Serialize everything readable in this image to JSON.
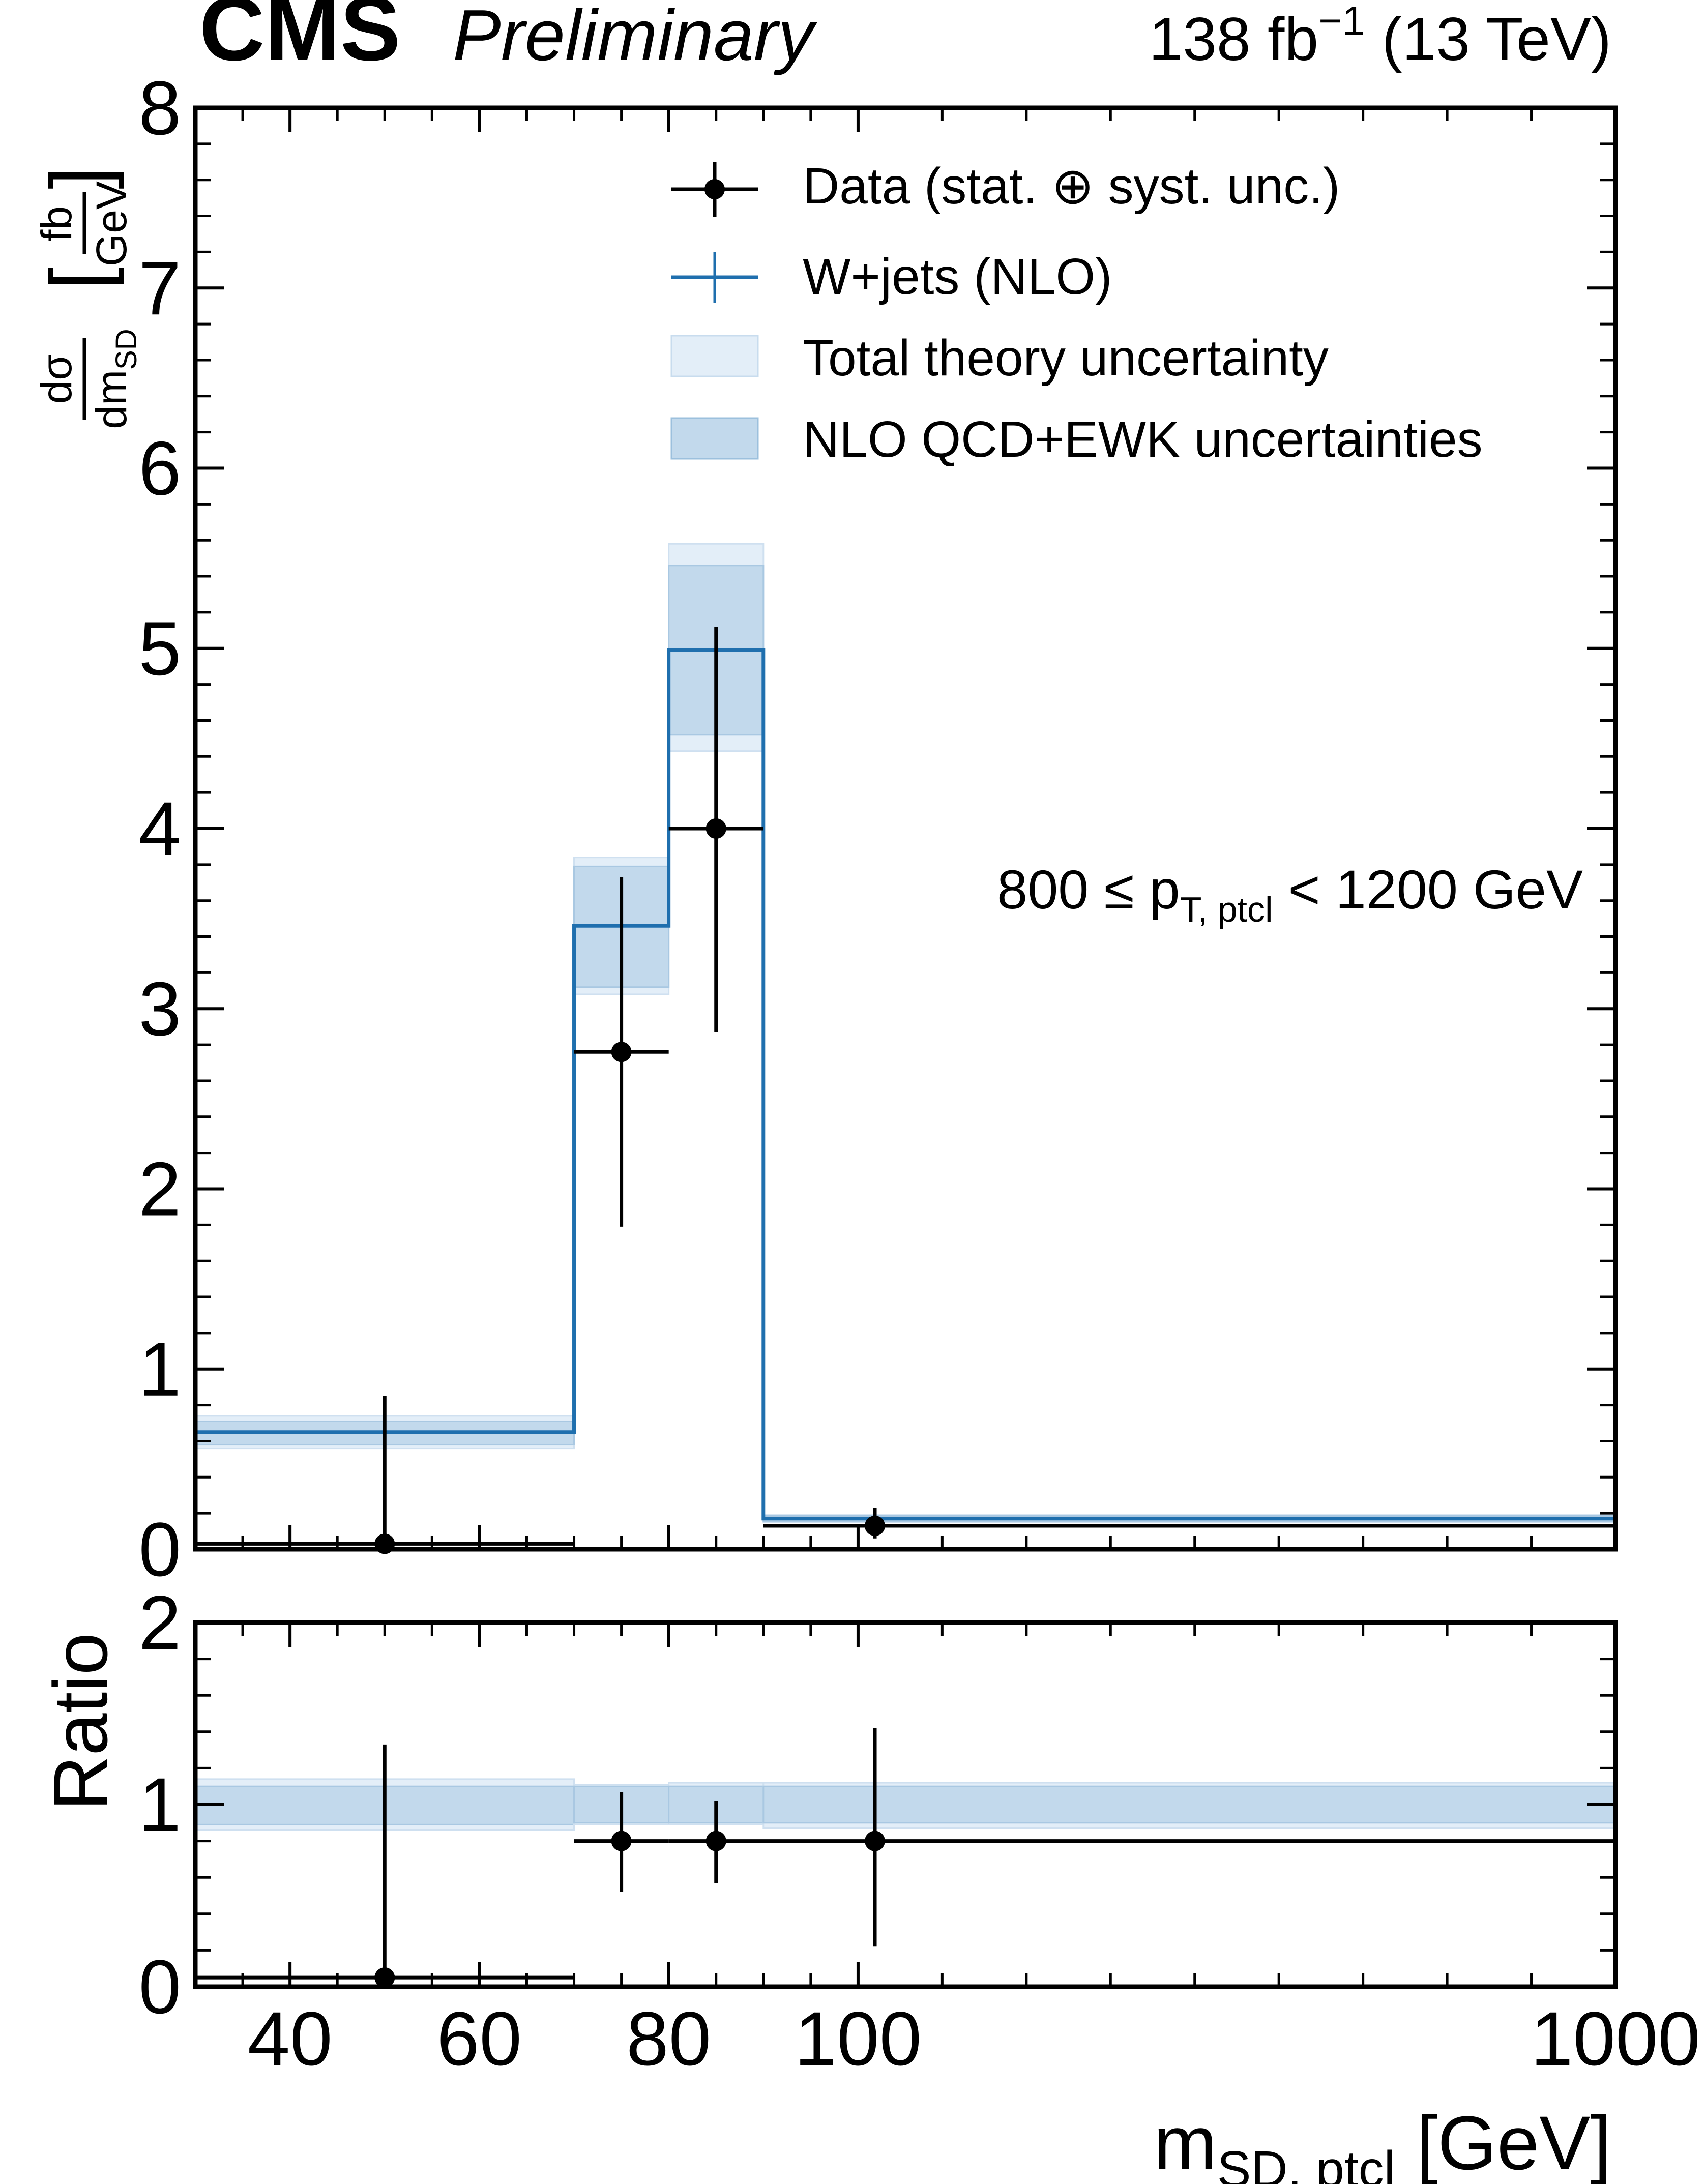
{
  "header": {
    "experiment": "CMS",
    "status": "Preliminary",
    "lumi_main": "138 fb",
    "lumi_exp": "−1",
    "lumi_energy": " (13 TeV)"
  },
  "colors": {
    "nlo_line": "#1f6fae",
    "band_total": "#e3eef8",
    "band_nlo": "#c2d9ec",
    "data": "#000000"
  },
  "legend": {
    "data": "Data (stat. ⊕ syst. unc.)",
    "mc": "W+jets (NLO)",
    "band_total": "Total theory uncertainty",
    "band_nlo": "NLO QCD+EWK uncertainties"
  },
  "annotation": {
    "pre": "800 ≤ p",
    "sub": "T, ptcl",
    "post": " < 1200 GeV"
  },
  "chart_data": [
    {
      "type": "histogram",
      "panel": "main",
      "bin_edges": [
        30,
        70,
        80,
        90,
        1000
      ],
      "x_tick_labels": [
        "40",
        "60",
        "80",
        "100",
        "1000"
      ],
      "ylabel": {
        "num": "dσ",
        "den_main": "dm",
        "den_sub": "SD",
        "unit_num": "fb",
        "unit_den": "GeV"
      },
      "ylim": [
        0,
        8
      ],
      "y_ticks": [
        "0",
        "1",
        "2",
        "3",
        "4",
        "5",
        "6",
        "7",
        "8"
      ],
      "series": [
        {
          "name": "W+jets (NLO)",
          "values": [
            0.65,
            3.46,
            4.99,
            0.17
          ],
          "total_band": [
            [
              0.56,
              0.74
            ],
            [
              3.08,
              3.84
            ],
            [
              4.43,
              5.58
            ],
            [
              0.15,
              0.19
            ]
          ],
          "nlo_band": [
            [
              0.58,
              0.71
            ],
            [
              3.12,
              3.79
            ],
            [
              4.52,
              5.46
            ],
            [
              0.155,
              0.185
            ]
          ]
        },
        {
          "name": "Data (stat. ⊕ syst. unc.)",
          "x": [
            50,
            75,
            85,
            120
          ],
          "values": [
            0.03,
            2.76,
            4.0,
            0.13
          ],
          "err_low": [
            0.03,
            0.97,
            1.13,
            0.07
          ],
          "err_high": [
            0.82,
            0.97,
            1.12,
            0.1
          ]
        }
      ]
    },
    {
      "type": "histogram",
      "panel": "ratio",
      "bin_edges": [
        30,
        70,
        80,
        90,
        1000
      ],
      "xlabel": {
        "main": "m",
        "sub": "SD, ptcl",
        "unit": " [GeV]"
      },
      "ylabel": "Ratio",
      "ylim": [
        0,
        2
      ],
      "y_ticks": [
        "0",
        "1",
        "2"
      ],
      "series": [
        {
          "name": "Data / W+jets (NLO)",
          "x": [
            50,
            75,
            85,
            120
          ],
          "values": [
            0.05,
            0.8,
            0.8,
            0.8
          ],
          "err_low": [
            0.05,
            0.28,
            0.23,
            0.58
          ],
          "err_high": [
            1.28,
            0.27,
            0.22,
            0.62
          ]
        }
      ],
      "total_band": [
        [
          0.86,
          1.14
        ],
        [
          0.89,
          1.11
        ],
        [
          0.89,
          1.12
        ],
        [
          0.87,
          1.12
        ]
      ],
      "nlo_band": [
        [
          0.89,
          1.1
        ],
        [
          0.9,
          1.1
        ],
        [
          0.9,
          1.1
        ],
        [
          0.9,
          1.1
        ]
      ]
    }
  ]
}
